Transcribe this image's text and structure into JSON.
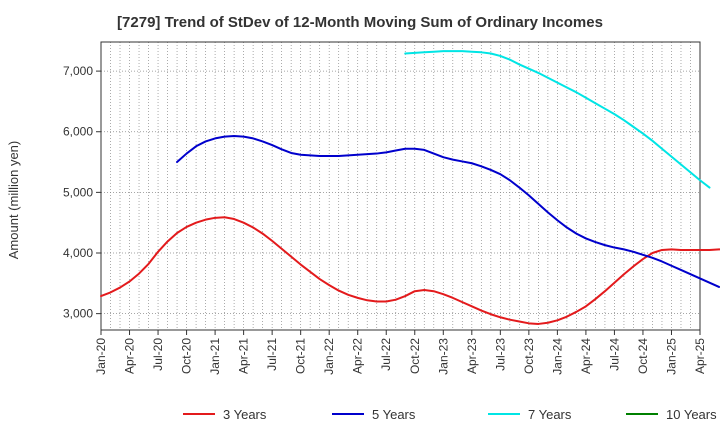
{
  "chart_data": {
    "type": "line",
    "title": "[7279]  Trend of StDev of 12-Month Moving Sum of Ordinary Incomes",
    "xlabel": "",
    "ylabel": "Amount (million yen)",
    "ylim": [
      2730,
      7480
    ],
    "yticks": [
      3000,
      4000,
      5000,
      6000,
      7000
    ],
    "ytick_labels": [
      "3,000",
      "4,000",
      "5,000",
      "6,000",
      "7,000"
    ],
    "x_tick_labels": [
      "Jan-20",
      "Apr-20",
      "Jul-20",
      "Oct-20",
      "Jan-21",
      "Apr-21",
      "Jul-21",
      "Oct-21",
      "Jan-22",
      "Apr-22",
      "Jul-22",
      "Oct-22",
      "Jan-23",
      "Apr-23",
      "Jul-23",
      "Oct-23",
      "Jan-24",
      "Apr-24",
      "Jul-24",
      "Oct-24",
      "Jan-25",
      "Apr-25"
    ],
    "x_unit": "month",
    "grid": true,
    "legend_position": "bottom",
    "series": [
      {
        "name": "3 Years",
        "color": "#e31a1c",
        "start": "Jan-20",
        "values": [
          3290,
          3350,
          3430,
          3530,
          3660,
          3820,
          4020,
          4190,
          4330,
          4430,
          4500,
          4550,
          4580,
          4590,
          4560,
          4500,
          4420,
          4320,
          4200,
          4070,
          3940,
          3810,
          3690,
          3570,
          3470,
          3380,
          3310,
          3260,
          3220,
          3200,
          3200,
          3230,
          3290,
          3370,
          3390,
          3370,
          3320,
          3260,
          3190,
          3120,
          3050,
          2990,
          2940,
          2900,
          2870,
          2840,
          2830,
          2850,
          2890,
          2950,
          3030,
          3120,
          3240,
          3370,
          3510,
          3650,
          3780,
          3900,
          4000,
          4050,
          4060,
          4050,
          4050,
          4050,
          4050,
          4060,
          4060
        ]
      },
      {
        "name": "5 Years",
        "color": "#0000cc",
        "start": "Sep-20",
        "values": [
          5500,
          5640,
          5760,
          5840,
          5890,
          5920,
          5930,
          5920,
          5890,
          5840,
          5780,
          5710,
          5650,
          5620,
          5610,
          5600,
          5600,
          5600,
          5610,
          5620,
          5630,
          5640,
          5660,
          5690,
          5720,
          5720,
          5700,
          5640,
          5580,
          5540,
          5510,
          5480,
          5430,
          5370,
          5300,
          5200,
          5080,
          4950,
          4810,
          4670,
          4540,
          4420,
          4320,
          4240,
          4180,
          4130,
          4090,
          4060,
          4020,
          3970,
          3920,
          3860,
          3790,
          3720,
          3650,
          3580,
          3510,
          3440
        ]
      },
      {
        "name": "7 Years",
        "color": "#00e5e5",
        "start": "Sep-22",
        "values": [
          7290,
          7300,
          7310,
          7320,
          7330,
          7330,
          7330,
          7320,
          7310,
          7290,
          7250,
          7190,
          7110,
          7040,
          6970,
          6890,
          6810,
          6730,
          6650,
          6560,
          6470,
          6380,
          6290,
          6190,
          6080,
          5970,
          5850,
          5720,
          5590,
          5460,
          5330,
          5200,
          5080
        ]
      },
      {
        "name": "10 Years",
        "color": "#008000",
        "start": "",
        "values": []
      }
    ]
  }
}
